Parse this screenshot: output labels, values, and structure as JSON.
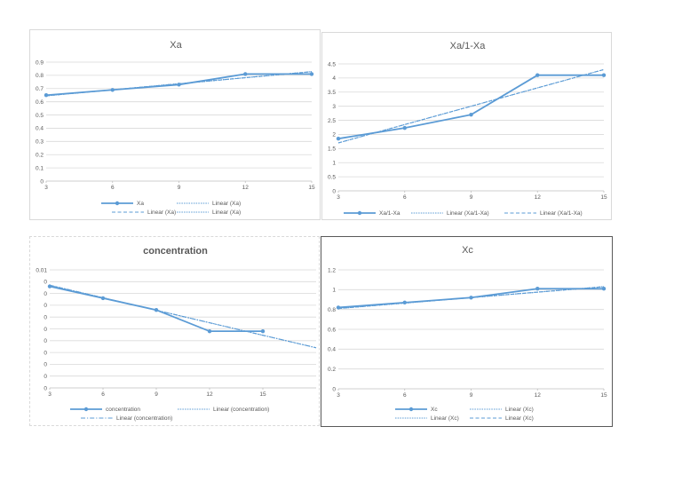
{
  "colors": {
    "series": "#5b9bd5",
    "grid": "#d9d9d9",
    "text": "#595959"
  },
  "chart_data": [
    {
      "id": "xa",
      "type": "line",
      "title": "Xa",
      "title_bold": false,
      "x": [
        3,
        6,
        9,
        12,
        15
      ],
      "xlim": [
        3,
        15
      ],
      "ylim": [
        0,
        0.9
      ],
      "y_ticks": [
        "0",
        "0.1",
        "0.2",
        "0.3",
        "0.4",
        "0.5",
        "0.6",
        "0.7",
        "0.8",
        "0.9"
      ],
      "x_ticks": [
        "3",
        "6",
        "9",
        "12",
        "15"
      ],
      "series": [
        {
          "name": "Xa",
          "values": [
            0.65,
            0.69,
            0.73,
            0.81,
            0.81
          ],
          "marker": "circle"
        }
      ],
      "trendlines": [
        {
          "name": "Linear (Xa)",
          "style": "dot",
          "from": [
            3,
            0.645
          ],
          "to": [
            15,
            0.828
          ]
        },
        {
          "name": "Linear (Xa)",
          "style": "dash",
          "from": [
            3,
            0.645
          ],
          "to": [
            15,
            0.828
          ]
        },
        {
          "name": "Linear (Xa)",
          "style": "dot",
          "from": [
            3,
            0.645
          ],
          "to": [
            15,
            0.828
          ]
        }
      ],
      "legend": [
        "Xa",
        "Linear (Xa)",
        "Linear (Xa)",
        "Linear (Xa)"
      ]
    },
    {
      "id": "xa1",
      "type": "line",
      "title": "Xa/1-Xa",
      "title_bold": false,
      "x": [
        3,
        6,
        9,
        12,
        15
      ],
      "xlim": [
        3,
        15
      ],
      "ylim": [
        0,
        4.5
      ],
      "y_ticks": [
        "0",
        "0.5",
        "1",
        "1.5",
        "2",
        "2.5",
        "3",
        "3.5",
        "4",
        "4.5"
      ],
      "x_ticks": [
        "3",
        "6",
        "9",
        "12",
        "15"
      ],
      "series": [
        {
          "name": "Xa/1-Xa",
          "values": [
            1.85,
            2.23,
            2.7,
            4.1,
            4.1
          ],
          "marker": "circle"
        }
      ],
      "trendlines": [
        {
          "name": "Linear (Xa/1-Xa)",
          "style": "dot",
          "from": [
            3,
            1.7
          ],
          "to": [
            15,
            4.3
          ]
        },
        {
          "name": "Linear (Xa/1-Xa)",
          "style": "dash",
          "from": [
            3,
            1.7
          ],
          "to": [
            15,
            4.3
          ]
        }
      ],
      "legend": [
        "Xa/1-Xa",
        "Linear (Xa/1-Xa)",
        "Linear (Xa/1-Xa)"
      ]
    },
    {
      "id": "conc",
      "type": "line",
      "title": "concentration",
      "title_bold": true,
      "x": [
        3,
        6,
        9,
        12,
        15
      ],
      "xlim": [
        3,
        18
      ],
      "ylim": [
        0,
        0.01
      ],
      "y_ticks": [
        "0",
        "0",
        "0",
        "0",
        "0",
        "0",
        "0",
        "0",
        "0",
        "0",
        "0.01"
      ],
      "x_ticks": [
        "3",
        "6",
        "9",
        "12",
        "15"
      ],
      "series": [
        {
          "name": "concentration",
          "values": [
            0.0086,
            0.0076,
            0.0066,
            0.0048,
            0.0048
          ],
          "marker": "circle"
        }
      ],
      "trendlines": [
        {
          "name": "Linear (concentration)",
          "style": "dot",
          "from": [
            3,
            0.0087
          ],
          "to": [
            18,
            0.0034
          ]
        },
        {
          "name": "Linear (concentration)",
          "style": "dashdot",
          "from": [
            3,
            0.0087
          ],
          "to": [
            18,
            0.0034
          ]
        }
      ],
      "legend": [
        "concentration",
        "Linear (concentration)",
        "Linear (concentration)"
      ]
    },
    {
      "id": "xc",
      "type": "line",
      "title": "Xc",
      "title_bold": false,
      "x": [
        3,
        6,
        9,
        12,
        15
      ],
      "xlim": [
        3,
        15
      ],
      "ylim": [
        0,
        1.2
      ],
      "y_ticks": [
        "0",
        "0.2",
        "0.4",
        "0.6",
        "0.8",
        "1",
        "1.2"
      ],
      "x_ticks": [
        "3",
        "6",
        "9",
        "12",
        "15"
      ],
      "series": [
        {
          "name": "Xc",
          "values": [
            0.82,
            0.87,
            0.92,
            1.01,
            1.01
          ],
          "marker": "circle"
        }
      ],
      "trendlines": [
        {
          "name": "Linear (Xc)",
          "style": "dot",
          "from": [
            3,
            0.81
          ],
          "to": [
            15,
            1.03
          ]
        },
        {
          "name": "Linear (Xc)",
          "style": "dot",
          "from": [
            3,
            0.81
          ],
          "to": [
            15,
            1.03
          ]
        },
        {
          "name": "Linear (Xc)",
          "style": "dash",
          "from": [
            3,
            0.81
          ],
          "to": [
            15,
            1.03
          ]
        }
      ],
      "legend": [
        "Xc",
        "Linear (Xc)",
        "Linear (Xc)",
        "Linear (Xc)"
      ]
    }
  ]
}
